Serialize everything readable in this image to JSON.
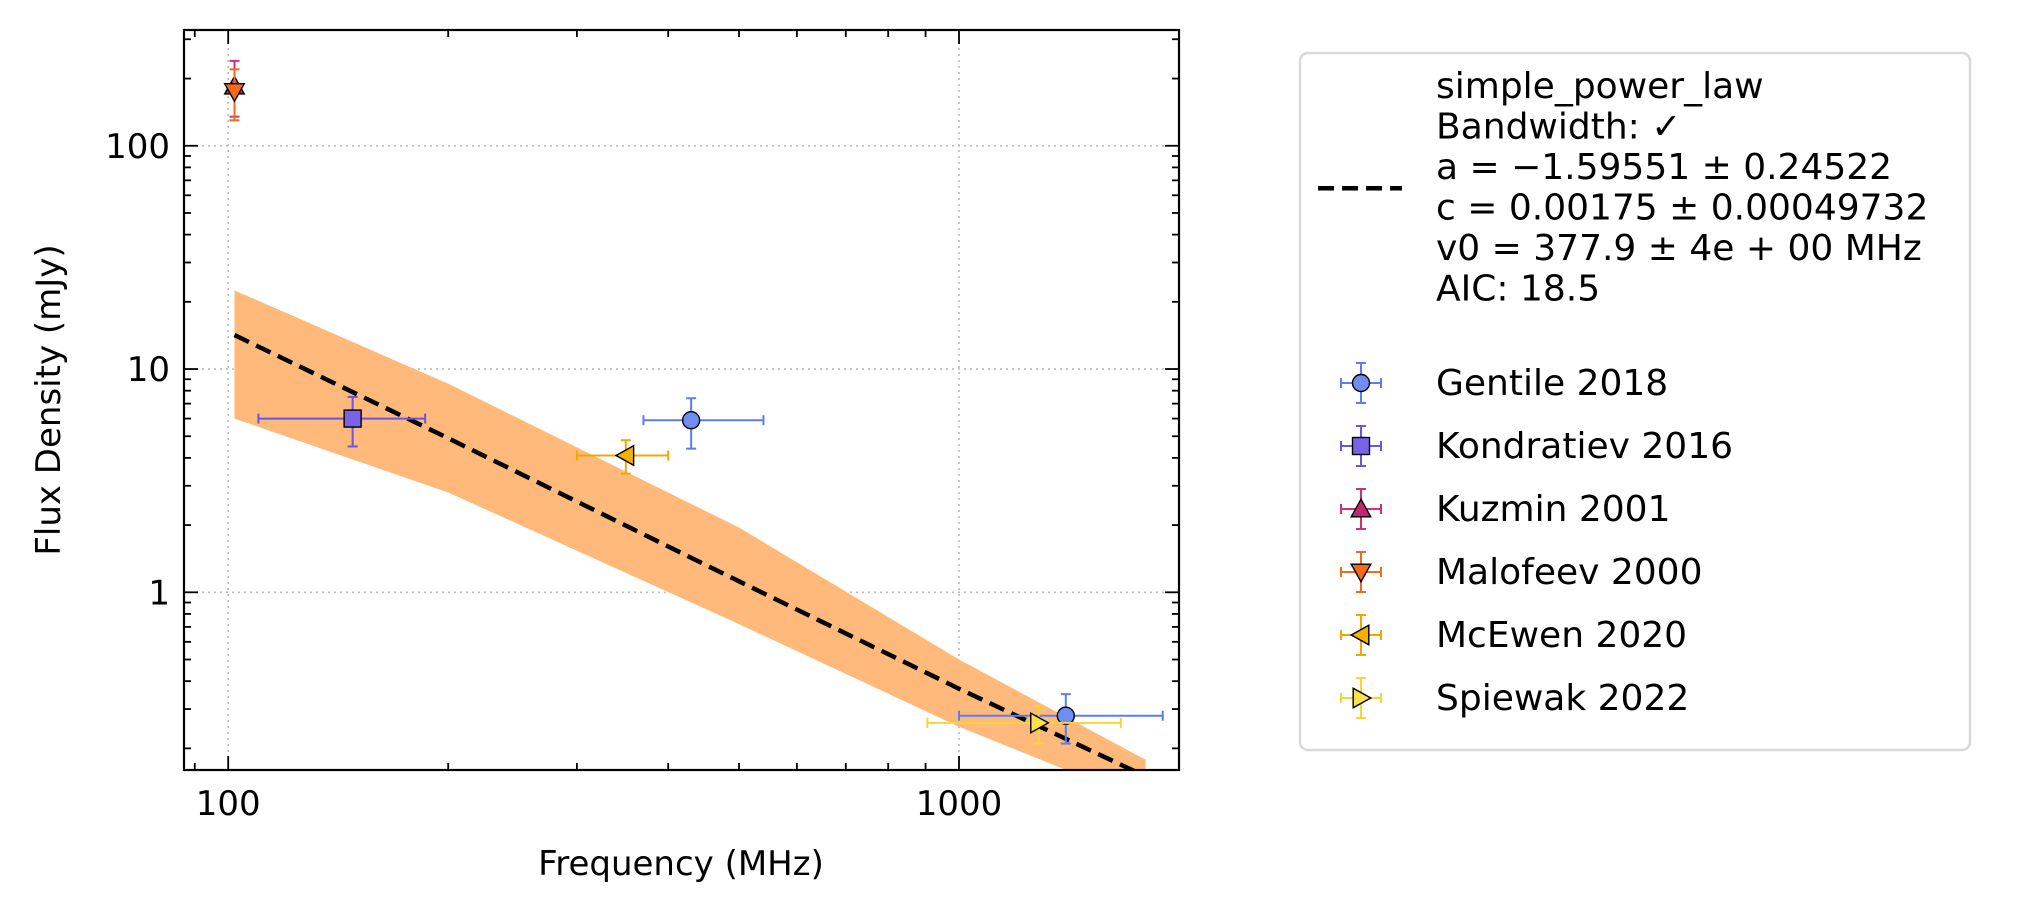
{
  "chart_data": {
    "type": "scatter",
    "xlabel": "Frequency (MHz)",
    "ylabel": "Flux Density (mJy)",
    "xscale": "log",
    "yscale": "log",
    "xlim": [
      87,
      2000
    ],
    "ylim": [
      0.16,
      330
    ],
    "grid": true,
    "legend_position": "outside-right",
    "x_ticks": [
      {
        "value": 100,
        "label": "100"
      },
      {
        "value": 1000,
        "label": "1000"
      }
    ],
    "y_ticks": [
      {
        "value": 1,
        "label": "1"
      },
      {
        "value": 10,
        "label": "10"
      },
      {
        "value": 100,
        "label": "100"
      }
    ],
    "fit": {
      "name": "simple_power_law",
      "legend_lines": [
        "simple_power_law",
        "Bandwidth: ✓",
        "a = −1.59551 ± 0.24522",
        "c = 0.00175 ± 0.00049732",
        "v0 = 377.9 ± 4e + 00 MHz",
        "AIC: 18.5"
      ],
      "line_color": "#000000",
      "band_color": "#ffb97a",
      "line_points": [
        [
          102,
          14.2
        ],
        [
          200,
          4.9
        ],
        [
          500,
          1.12
        ],
        [
          1000,
          0.37
        ],
        [
          1800,
          0.15
        ]
      ],
      "band_upper": [
        [
          102,
          22.5
        ],
        [
          200,
          8.6
        ],
        [
          500,
          1.95
        ],
        [
          1000,
          0.5
        ],
        [
          1800,
          0.178
        ]
      ],
      "band_lower": [
        [
          102,
          6.0
        ],
        [
          200,
          2.8
        ],
        [
          500,
          0.72
        ],
        [
          1000,
          0.25
        ],
        [
          1800,
          0.115
        ]
      ]
    },
    "series": [
      {
        "name": "Gentile 2018",
        "marker": "circle",
        "color": "#5b7ff0",
        "face": "#6f8df2",
        "points": [
          {
            "x": 430,
            "y": 5.9,
            "xerr": [
              60,
              110
            ],
            "yerr": [
              1.5,
              1.5
            ]
          },
          {
            "x": 1400,
            "y": 0.28,
            "xerr": [
              400,
              500
            ],
            "yerr": [
              0.07,
              0.07
            ]
          }
        ]
      },
      {
        "name": "Kondratiev 2016",
        "marker": "square",
        "color": "#6a55e0",
        "face": "#7b63e8",
        "points": [
          {
            "x": 148,
            "y": 6.0,
            "xerr": [
              38,
              38
            ],
            "yerr": [
              1.5,
              1.5
            ]
          }
        ]
      },
      {
        "name": "Kuzmin 2001",
        "marker": "triangle-up",
        "color": "#d0307a",
        "face": "#c02a6e",
        "points": [
          {
            "x": 102,
            "y": 185,
            "xerr": [
              0,
              0
            ],
            "yerr": [
              50,
              55
            ]
          }
        ]
      },
      {
        "name": "Malofeev 2000",
        "marker": "triangle-down",
        "color": "#f26a1b",
        "face": "#f26a1b",
        "points": [
          {
            "x": 102,
            "y": 175,
            "xerr": [
              0,
              0
            ],
            "yerr": [
              45,
              45
            ]
          }
        ]
      },
      {
        "name": "McEwen 2020",
        "marker": "triangle-left",
        "color": "#f0a800",
        "face": "#f5b000",
        "points": [
          {
            "x": 350,
            "y": 4.1,
            "xerr": [
              50,
              50
            ],
            "yerr": [
              0.7,
              0.7
            ]
          }
        ]
      },
      {
        "name": "Spiewak 2022",
        "marker": "triangle-right",
        "color": "#f8d43a",
        "face": "#fbe14a",
        "points": [
          {
            "x": 1285,
            "y": 0.26,
            "xerr": [
              380,
              380
            ],
            "yerr": [
              0.05,
              0.05
            ]
          }
        ]
      }
    ]
  }
}
